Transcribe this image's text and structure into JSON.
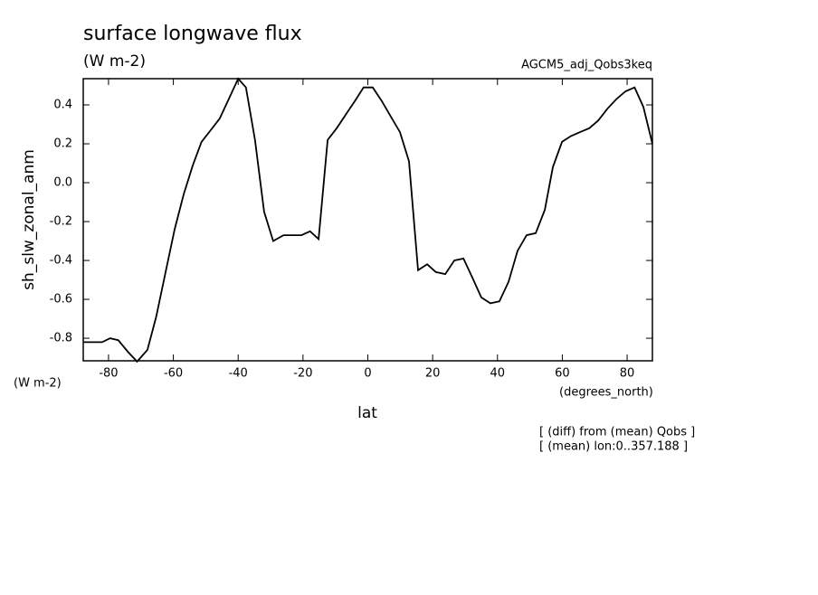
{
  "chart_data": {
    "type": "line",
    "title": "surface longwave flux",
    "subtitle": "(W m-2)",
    "label_right": "AGCM5_adj_Qobs3keq",
    "y_label": "sh_slw_zonal_anm",
    "y_units": "(W m-2)",
    "x_label": "lat",
    "x_units": "(degrees_north)",
    "annotations": [
      "[ (diff) from (mean) Qobs ]",
      "[ (mean) lon:0..357.188 ]"
    ],
    "xlim": [
      -87.8,
      87.8
    ],
    "ylim": [
      -0.916,
      0.535
    ],
    "xticks": [
      -80,
      -60,
      -40,
      -20,
      0,
      20,
      40,
      60,
      80
    ],
    "yticks": [
      -0.8,
      -0.6,
      -0.4,
      -0.2,
      {
        "value": 0,
        "label": "0.0"
      },
      0.2,
      0.4
    ],
    "color": "#000000",
    "x": [
      -87.8,
      -82,
      -79.5,
      -77,
      -74,
      -71.2,
      -68,
      -65.3,
      -62.4,
      -59.6,
      -56.8,
      -54,
      -51.3,
      -48.5,
      -45.7,
      -42.9,
      -40,
      -37.6,
      -34.8,
      -32,
      -29.2,
      -26,
      -23.3,
      -20.5,
      -17.8,
      -15.2,
      -12.4,
      -9.6,
      -6.8,
      -4,
      -1.3,
      1.5,
      4.3,
      7.1,
      9.9,
      12.7,
      15.5,
      18.3,
      21,
      23.9,
      26.7,
      29.5,
      32.3,
      35,
      37.8,
      40.6,
      43.4,
      46.2,
      49,
      51.8,
      54.6,
      57.1,
      59.9,
      62.7,
      65.5,
      68.3,
      71.1,
      73.9,
      76.7,
      79.5,
      82.3,
      85,
      87.8
    ],
    "values": [
      -0.82,
      -0.82,
      -0.8,
      -0.81,
      -0.87,
      -0.92,
      -0.86,
      -0.69,
      -0.46,
      -0.24,
      -0.06,
      0.09,
      0.21,
      0.27,
      0.33,
      0.43,
      0.535,
      0.49,
      0.22,
      -0.15,
      -0.3,
      -0.27,
      -0.27,
      -0.27,
      -0.25,
      -0.29,
      0.22,
      0.28,
      0.35,
      0.42,
      0.49,
      0.49,
      0.42,
      0.34,
      0.26,
      0.11,
      -0.45,
      -0.42,
      -0.46,
      -0.47,
      -0.4,
      -0.39,
      -0.49,
      -0.59,
      -0.62,
      -0.61,
      -0.51,
      -0.35,
      -0.27,
      -0.26,
      -0.14,
      0.08,
      0.21,
      0.24,
      0.26,
      0.28,
      0.32,
      0.38,
      0.43,
      0.47,
      0.49,
      0.39,
      0.2
    ]
  }
}
